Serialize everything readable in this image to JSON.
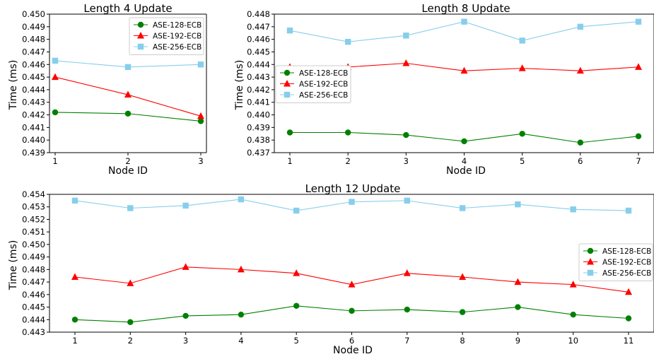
{
  "chart_data": [
    {
      "type": "line",
      "title": "Length 4 Update",
      "xlabel": "Node ID",
      "ylabel": "Time (ms)",
      "x": [
        1,
        2,
        3
      ],
      "xticks": [
        "1",
        "2",
        "3"
      ],
      "yticks": [
        "0.439",
        "0.440",
        "0.441",
        "0.442",
        "0.443",
        "0.444",
        "0.445",
        "0.446",
        "0.447",
        "0.448",
        "0.449",
        "0.450"
      ],
      "ylim": [
        0.439,
        0.45
      ],
      "legend": "top-right",
      "series": [
        {
          "name": "ASE-128-ECB",
          "color": "#008000",
          "marker": "circle",
          "values": [
            0.4422,
            0.4421,
            0.4415
          ]
        },
        {
          "name": "ASE-192-ECB",
          "color": "#ff0000",
          "marker": "triangle",
          "values": [
            0.445,
            0.4436,
            0.4419
          ]
        },
        {
          "name": "ASE-256-ECB",
          "color": "#87ceeb",
          "marker": "square",
          "values": [
            0.4463,
            0.4458,
            0.446
          ]
        }
      ]
    },
    {
      "type": "line",
      "title": "Length 8 Update",
      "xlabel": "Node ID",
      "ylabel": "Time (ms)",
      "x": [
        1,
        2,
        3,
        4,
        5,
        6,
        7
      ],
      "xticks": [
        "1",
        "2",
        "3",
        "4",
        "5",
        "6",
        "7"
      ],
      "yticks": [
        "0.437",
        "0.438",
        "0.439",
        "0.440",
        "0.441",
        "0.442",
        "0.443",
        "0.444",
        "0.445",
        "0.446",
        "0.447",
        "0.448"
      ],
      "ylim": [
        0.437,
        0.448
      ],
      "legend": "center-left",
      "series": [
        {
          "name": "ASE-128-ECB",
          "color": "#008000",
          "marker": "circle",
          "values": [
            0.4386,
            0.4386,
            0.4384,
            0.4379,
            0.4385,
            0.4378,
            0.4383
          ]
        },
        {
          "name": "ASE-192-ECB",
          "color": "#ff0000",
          "marker": "triangle",
          "values": [
            0.4438,
            0.4438,
            0.4441,
            0.4435,
            0.4437,
            0.4435,
            0.4438
          ]
        },
        {
          "name": "ASE-256-ECB",
          "color": "#87ceeb",
          "marker": "square",
          "values": [
            0.4467,
            0.4458,
            0.4463,
            0.4474,
            0.4459,
            0.447,
            0.4474
          ]
        }
      ]
    },
    {
      "type": "line",
      "title": "Length 12 Update",
      "xlabel": "Node ID",
      "ylabel": "Time (ms)",
      "x": [
        1,
        2,
        3,
        4,
        5,
        6,
        7,
        8,
        9,
        10,
        11
      ],
      "xticks": [
        "1",
        "2",
        "3",
        "4",
        "5",
        "6",
        "7",
        "8",
        "9",
        "10",
        "11"
      ],
      "yticks": [
        "0.443",
        "0.444",
        "0.445",
        "0.446",
        "0.447",
        "0.448",
        "0.449",
        "0.450",
        "0.451",
        "0.452",
        "0.453",
        "0.454"
      ],
      "ylim": [
        0.443,
        0.454
      ],
      "legend": "center-right",
      "series": [
        {
          "name": "ASE-128-ECB",
          "color": "#008000",
          "marker": "circle",
          "values": [
            0.444,
            0.4438,
            0.4443,
            0.4444,
            0.4451,
            0.4447,
            0.4448,
            0.4446,
            0.445,
            0.4444,
            0.4441
          ]
        },
        {
          "name": "ASE-192-ECB",
          "color": "#ff0000",
          "marker": "triangle",
          "values": [
            0.4474,
            0.4469,
            0.4482,
            0.448,
            0.4477,
            0.4468,
            0.4477,
            0.4474,
            0.447,
            0.4468,
            0.4462
          ]
        },
        {
          "name": "ASE-256-ECB",
          "color": "#87ceeb",
          "marker": "square",
          "values": [
            0.4535,
            0.4529,
            0.4531,
            0.4536,
            0.4527,
            0.4534,
            0.4535,
            0.4529,
            0.4532,
            0.4528,
            0.4527
          ]
        }
      ]
    }
  ]
}
